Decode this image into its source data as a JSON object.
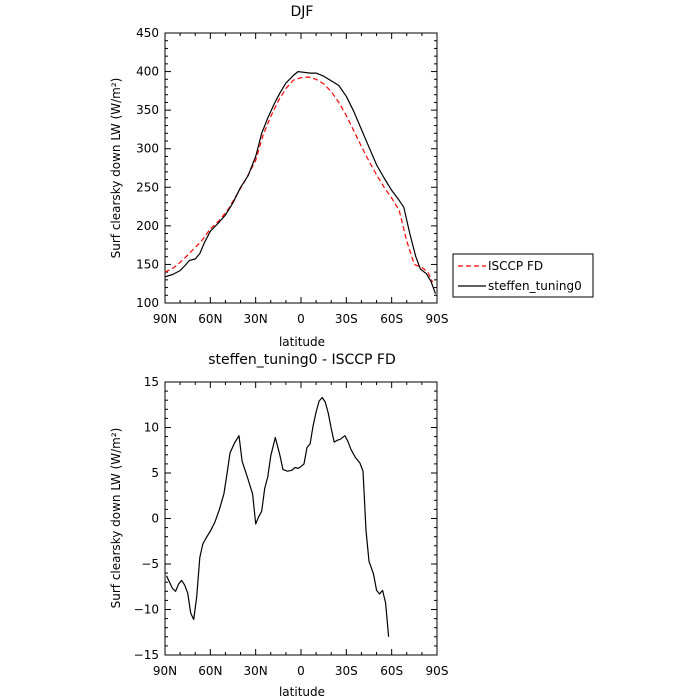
{
  "chart_data": [
    {
      "type": "line",
      "title": "DJF",
      "xlabel": "latitude",
      "ylabel": "Surf clearsky down LW (W/m²)",
      "xlim": [
        90,
        -90
      ],
      "ylim": [
        100,
        450
      ],
      "x_ticks": [
        {
          "value": 90,
          "label": "90N"
        },
        {
          "value": 60,
          "label": "60N"
        },
        {
          "value": 30,
          "label": "30N"
        },
        {
          "value": 0,
          "label": "0"
        },
        {
          "value": -30,
          "label": "30S"
        },
        {
          "value": -60,
          "label": "60S"
        },
        {
          "value": -90,
          "label": "90S"
        }
      ],
      "y_ticks": [
        "100",
        "150",
        "200",
        "250",
        "300",
        "350",
        "400",
        "450"
      ],
      "legend_position": "right, outside the plot",
      "series": [
        {
          "name": "ISCCP FD",
          "color": "#ff0000",
          "dash": "dashed",
          "points": [
            [
              90,
              140
            ],
            [
              84,
              146
            ],
            [
              78,
              156
            ],
            [
              72,
              168
            ],
            [
              66,
              180
            ],
            [
              60,
              196
            ],
            [
              54,
              207
            ],
            [
              48,
              222
            ],
            [
              42,
              242
            ],
            [
              36,
              262
            ],
            [
              30,
              285
            ],
            [
              25,
              318
            ],
            [
              20,
              342
            ],
            [
              15,
              362
            ],
            [
              10,
              378
            ],
            [
              5,
              389
            ],
            [
              0,
              392
            ],
            [
              -5,
              393
            ],
            [
              -10,
              390
            ],
            [
              -15,
              384
            ],
            [
              -20,
              374
            ],
            [
              -25,
              360
            ],
            [
              -30,
              343
            ],
            [
              -35,
              323
            ],
            [
              -40,
              303
            ],
            [
              -45,
              284
            ],
            [
              -50,
              266
            ],
            [
              -55,
              250
            ],
            [
              -60,
              236
            ],
            [
              -65,
              220
            ],
            [
              -70,
              180
            ],
            [
              -75,
              150
            ],
            [
              -80,
              146
            ],
            [
              -84,
              140
            ],
            [
              -87,
              127
            ]
          ]
        },
        {
          "name": "steffen_tuning0",
          "color": "#000000",
          "dash": "solid",
          "points": [
            [
              90,
              134
            ],
            [
              85,
              137
            ],
            [
              80,
              142
            ],
            [
              77,
              148
            ],
            [
              74,
              155
            ],
            [
              70,
              157
            ],
            [
              67,
              164
            ],
            [
              64,
              178
            ],
            [
              60,
              193
            ],
            [
              55,
              203
            ],
            [
              50,
              214
            ],
            [
              45,
              230
            ],
            [
              40,
              250
            ],
            [
              35,
              265
            ],
            [
              30,
              290
            ],
            [
              26,
              320
            ],
            [
              22,
              340
            ],
            [
              18,
              357
            ],
            [
              14,
              372
            ],
            [
              10,
              385
            ],
            [
              5,
              395
            ],
            [
              2,
              400
            ],
            [
              -2,
              399
            ],
            [
              -6,
              398
            ],
            [
              -10,
              398
            ],
            [
              -15,
              394
            ],
            [
              -20,
              388
            ],
            [
              -25,
              382
            ],
            [
              -30,
              368
            ],
            [
              -35,
              348
            ],
            [
              -40,
              325
            ],
            [
              -45,
              302
            ],
            [
              -50,
              279
            ],
            [
              -55,
              262
            ],
            [
              -60,
              246
            ],
            [
              -65,
              233
            ],
            [
              -68,
              224
            ],
            [
              -72,
              190
            ],
            [
              -76,
              160
            ],
            [
              -79,
              144
            ],
            [
              -83,
              138
            ],
            [
              -86,
              128
            ],
            [
              -89,
              112
            ]
          ]
        }
      ]
    },
    {
      "type": "line",
      "title": "steffen_tuning0 - ISCCP FD",
      "xlabel": "latitude",
      "ylabel": "Surf clearsky down LW (W/m²)",
      "xlim": [
        90,
        -90
      ],
      "ylim": [
        -15,
        15
      ],
      "x_ticks": [
        {
          "value": 90,
          "label": "90N"
        },
        {
          "value": 60,
          "label": "60N"
        },
        {
          "value": 30,
          "label": "30N"
        },
        {
          "value": 0,
          "label": "0"
        },
        {
          "value": -30,
          "label": "30S"
        },
        {
          "value": -60,
          "label": "60S"
        },
        {
          "value": -90,
          "label": "90S"
        }
      ],
      "y_ticks": [
        "−15",
        "−10",
        "−5",
        "0",
        "5",
        "10",
        "15"
      ],
      "series": [
        {
          "color": "#000000",
          "dash": "solid",
          "points": [
            [
              89,
              -6.3
            ],
            [
              87,
              -7
            ],
            [
              85,
              -7.7
            ],
            [
              83,
              -8
            ],
            [
              81,
              -7.2
            ],
            [
              79,
              -6.8
            ],
            [
              77,
              -7.3
            ],
            [
              75,
              -8.2
            ],
            [
              73,
              -10.4
            ],
            [
              71,
              -11.1
            ],
            [
              69,
              -8.6
            ],
            [
              67,
              -4.3
            ],
            [
              65,
              -2.8
            ],
            [
              63,
              -2.2
            ],
            [
              60,
              -1.4
            ],
            [
              57,
              -0.4
            ],
            [
              54,
              1.0
            ],
            [
              51,
              2.7
            ],
            [
              49,
              4.9
            ],
            [
              47,
              7.2
            ],
            [
              44,
              8.3
            ],
            [
              41,
              9.1
            ],
            [
              39,
              6.3
            ],
            [
              35,
              4.3
            ],
            [
              32,
              2.7
            ],
            [
              30,
              -0.6
            ],
            [
              28,
              0.2
            ],
            [
              26,
              0.8
            ],
            [
              24,
              3.3
            ],
            [
              22,
              4.6
            ],
            [
              20,
              6.9
            ],
            [
              17,
              8.9
            ],
            [
              14,
              7.0
            ],
            [
              12,
              5.4
            ],
            [
              9,
              5.2
            ],
            [
              6,
              5.3
            ],
            [
              4,
              5.6
            ],
            [
              2,
              5.5
            ],
            [
              0,
              5.7
            ],
            [
              -2,
              6.0
            ],
            [
              -4,
              7.8
            ],
            [
              -6,
              8.2
            ],
            [
              -8,
              10.2
            ],
            [
              -10,
              11.7
            ],
            [
              -12,
              12.9
            ],
            [
              -14,
              13.3
            ],
            [
              -16,
              12.8
            ],
            [
              -18,
              11.6
            ],
            [
              -20,
              9.9
            ],
            [
              -22,
              8.4
            ],
            [
              -24,
              8.6
            ],
            [
              -26,
              8.7
            ],
            [
              -29,
              9.1
            ],
            [
              -31,
              8.5
            ],
            [
              -33,
              7.6
            ],
            [
              -36,
              6.7
            ],
            [
              -39,
              6.1
            ],
            [
              -41,
              5.2
            ],
            [
              -43,
              -1.3
            ],
            [
              -45,
              -4.7
            ],
            [
              -48,
              -6.1
            ],
            [
              -50,
              -7.9
            ],
            [
              -52,
              -8.3
            ],
            [
              -54,
              -7.9
            ],
            [
              -56,
              -9.3
            ],
            [
              -58,
              -13.0
            ]
          ]
        }
      ]
    }
  ]
}
